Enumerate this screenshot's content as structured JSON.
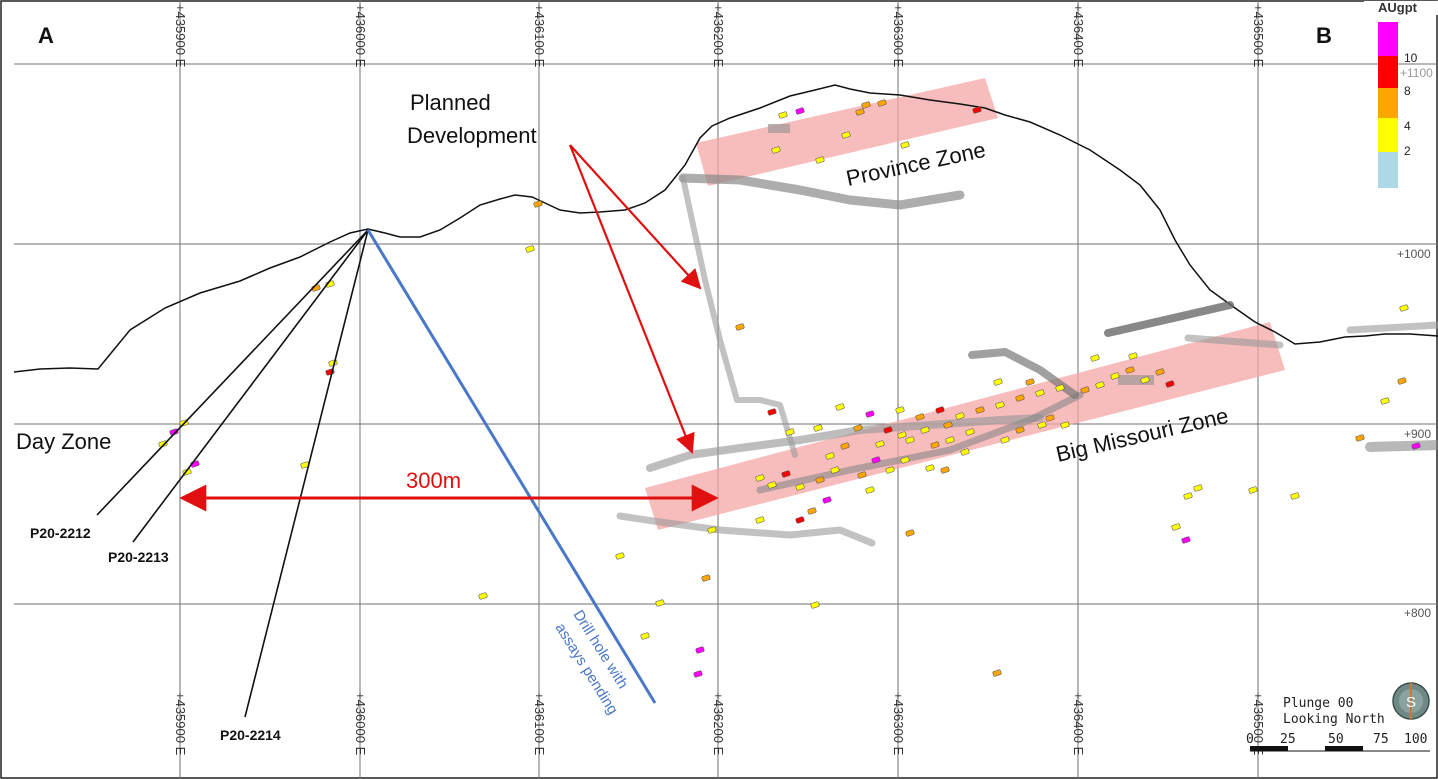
{
  "section": {
    "end_left": "A",
    "end_right": "B",
    "easting_labels": [
      "+435900 E",
      "+436000 E",
      "+436100 E",
      "+436200 E",
      "+436300 E",
      "+436400 E",
      "+436500 E"
    ],
    "elevation_labels": [
      "+1100",
      "+1000",
      "+900",
      "+800"
    ]
  },
  "legend": {
    "title": "AUgpt",
    "bins": [
      {
        "label": "10",
        "color": "#ff00ff"
      },
      {
        "label": "8",
        "color": "#ff0000"
      },
      {
        "label": "4",
        "color": "#ffa500"
      },
      {
        "label": "2",
        "color": "#ffff00"
      },
      {
        "label": "",
        "color": "#add8e6"
      }
    ]
  },
  "annotations": {
    "planned_line1": "Planned",
    "planned_line2": "Development",
    "province_zone": "Province Zone",
    "big_missouri_zone": "Big Missouri Zone",
    "day_zone": "Day Zone",
    "distance": "300m",
    "pending_line1": "Drill hole with",
    "pending_line2": "assays pending"
  },
  "drill_holes": [
    "P20-2212",
    "P20-2213",
    "P20-2214"
  ],
  "view": {
    "plunge": "Plunge 00",
    "looking": "Looking North",
    "compass_letter": "S"
  },
  "scale_bar": {
    "ticks": [
      "0",
      "25",
      "50",
      "75",
      "100"
    ]
  },
  "colors": {
    "zone_fill": "#f4a6a6",
    "arrow": "#e01010",
    "pending_hole": "#4a78c8",
    "grid": "#707070"
  }
}
